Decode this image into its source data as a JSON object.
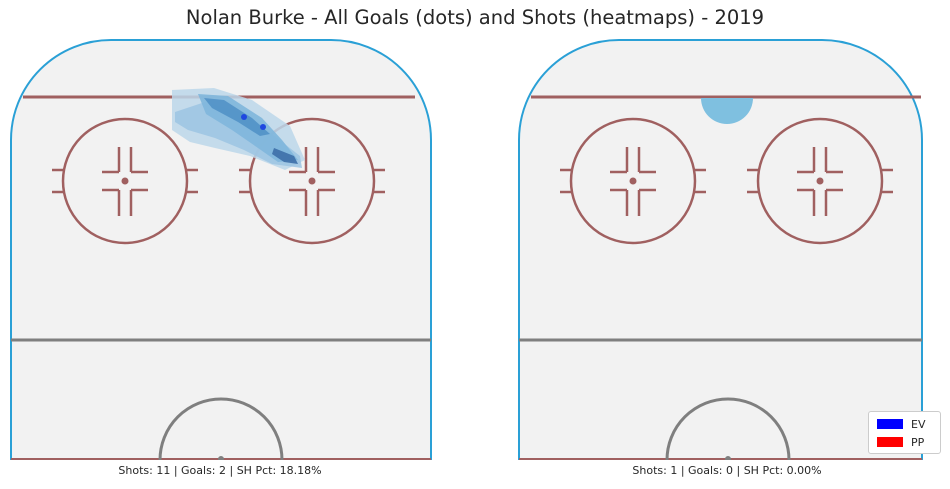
{
  "chart_data": {
    "title": "Nolan Burke - All Goals (dots) and Shots (heatmaps) - 2019",
    "type": "heatmap",
    "panels": [
      {
        "situation": "EV",
        "caption": "Shots: 11 | Goals: 2 | SH Pct: 18.18%",
        "shots": 11,
        "goals": 2,
        "sh_pct": "18.18%"
      },
      {
        "situation": "PP",
        "caption": "Shots: 1 | Goals: 0 | SH Pct: 0.00%",
        "shots": 1,
        "goals": 0,
        "sh_pct": "0.00%"
      }
    ],
    "legend": {
      "placement": "bottom-right",
      "entries": [
        {
          "label": "EV",
          "color": "#0000ff"
        },
        {
          "label": "PP",
          "color": "#ff0000"
        }
      ]
    }
  },
  "colors": {
    "boards": "#2aa0d6",
    "lines": "#a06060",
    "center_line": "#7f7f7f",
    "ice": "#f2f2f2",
    "heat_light": "#bcd7ea",
    "heat_mid": "#7fb6dc",
    "heat_dark": "#3d7fb8",
    "goal_dot": "#1f48e0"
  }
}
